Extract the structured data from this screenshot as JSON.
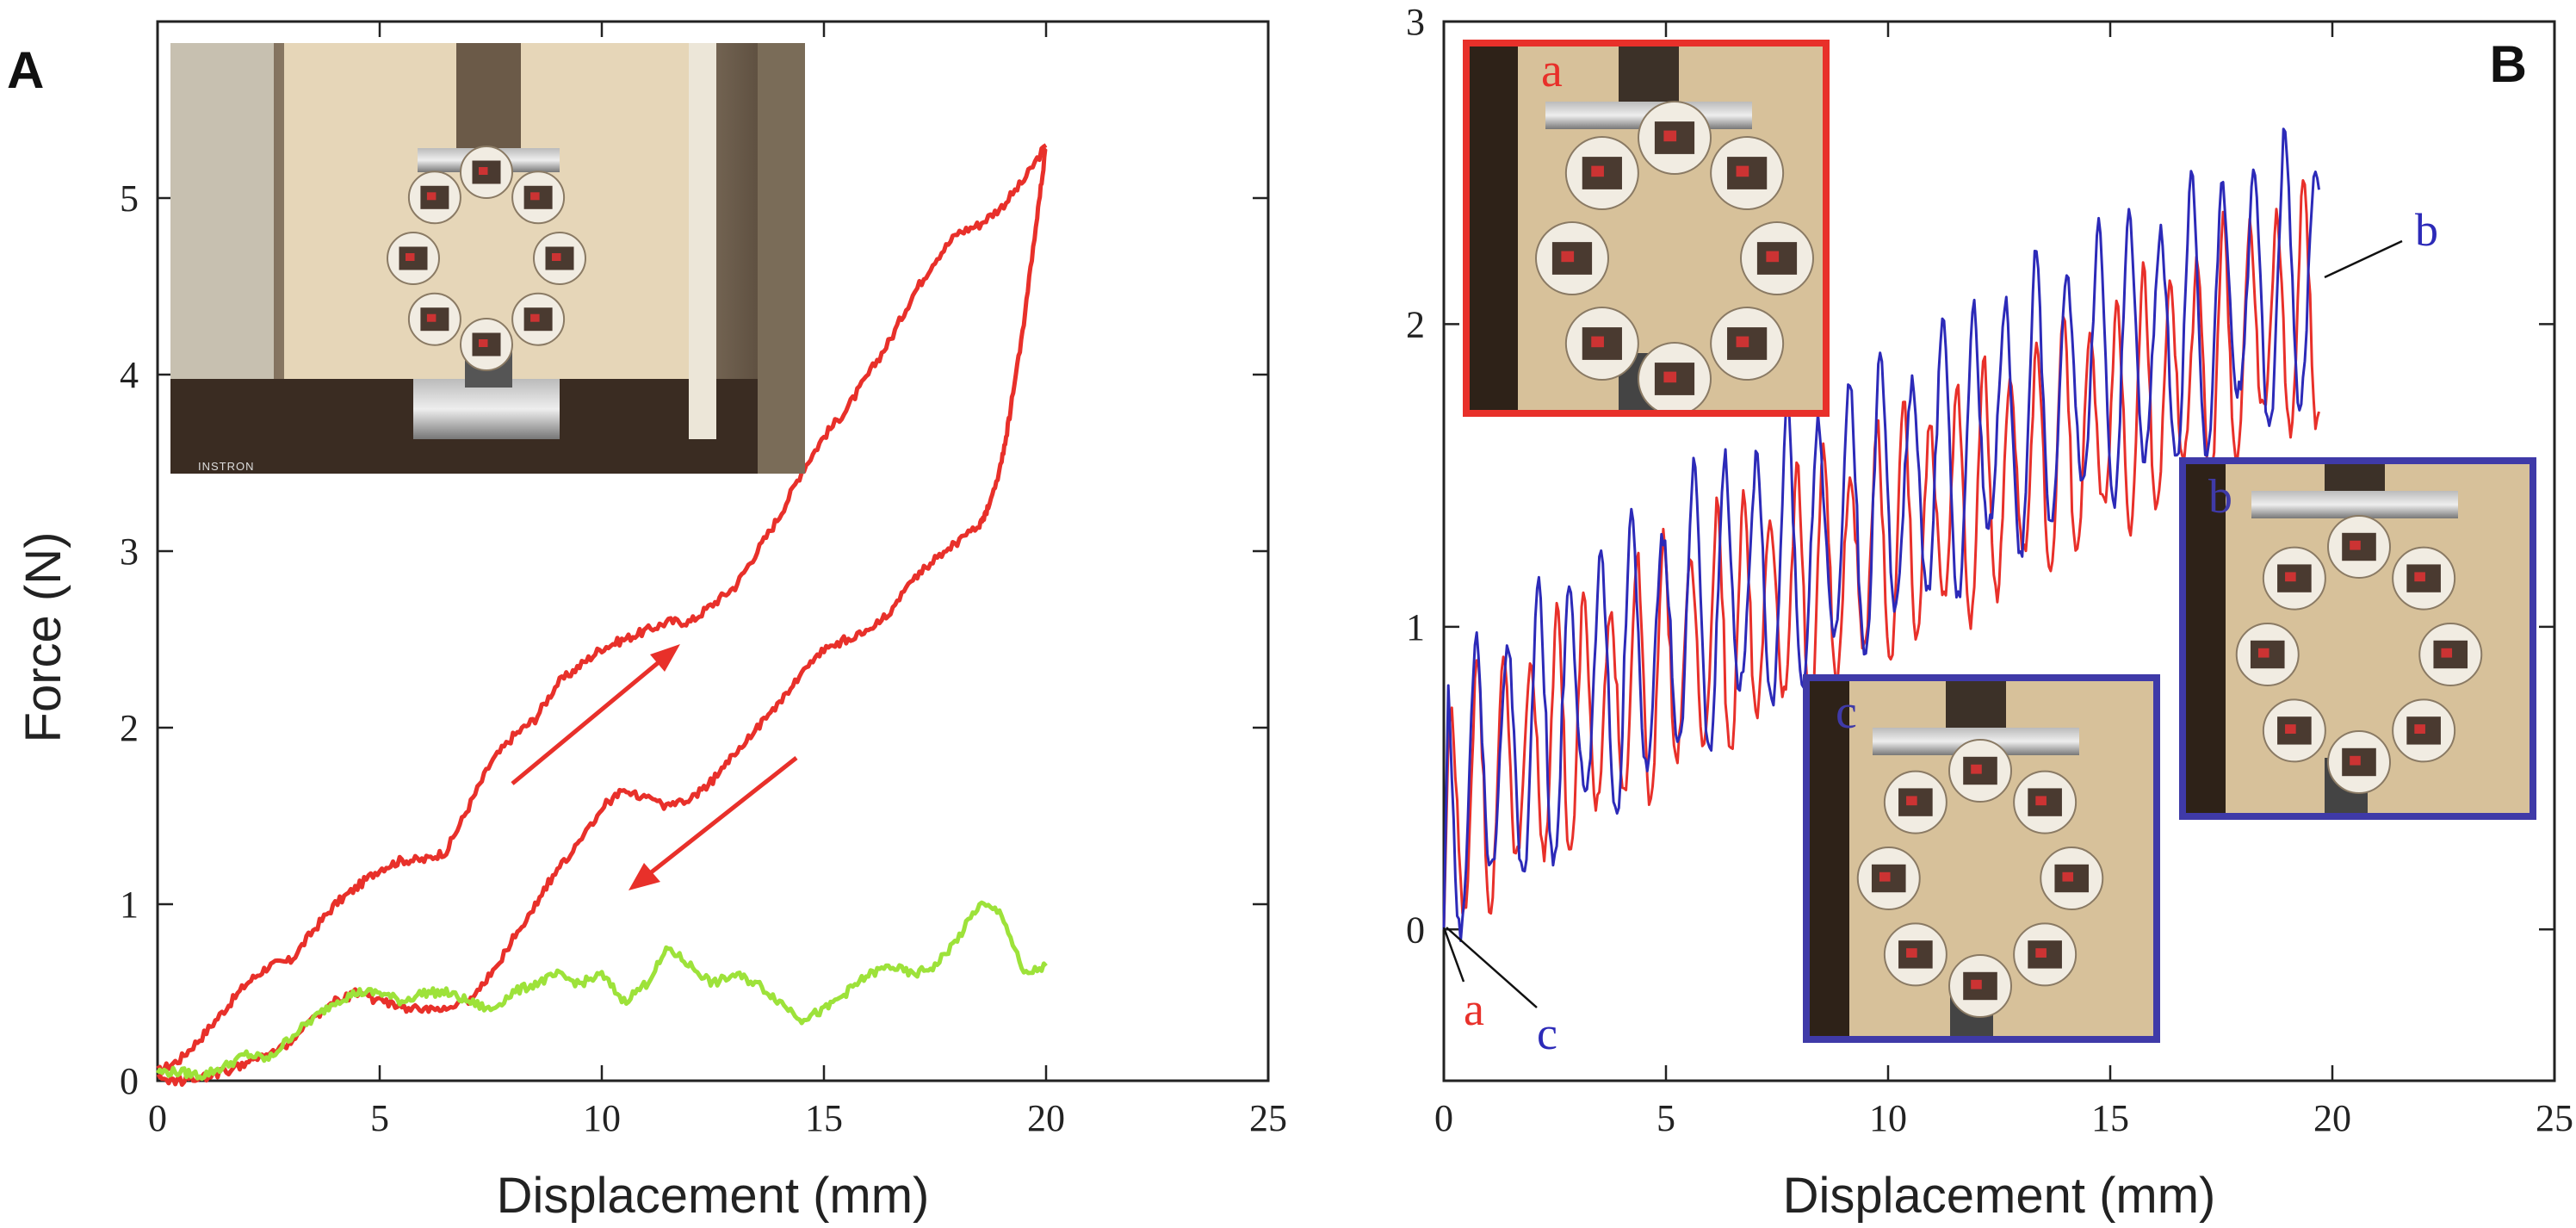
{
  "chart_data": [
    {
      "panel": "A",
      "type": "line",
      "xlabel": "Displacement (mm)",
      "ylabel": "Force  (N)",
      "xlim": [
        0,
        25
      ],
      "ylim": [
        0,
        6
      ],
      "xticks": [
        "0",
        "5",
        "10",
        "15",
        "20",
        "25"
      ],
      "yticks": [
        "0",
        "1",
        "2",
        "3",
        "4",
        "5"
      ],
      "inset_photo_label": "INSTRON",
      "series": [
        {
          "color": "#e8302a",
          "x": [
            0,
            0.5,
            1,
            1.5,
            2,
            2.5,
            3,
            3.5,
            4,
            4.5,
            5,
            5.5,
            6,
            6.5,
            7,
            7.5,
            8,
            8.5,
            9,
            9.5,
            10,
            10.5,
            11,
            11.5,
            12,
            12.5,
            13,
            13.5,
            14,
            14.5,
            15,
            15.5,
            16,
            16.5,
            17,
            17.5,
            18,
            18.5,
            19,
            19.5,
            20
          ],
          "y": [
            0.05,
            0.12,
            0.25,
            0.4,
            0.55,
            0.65,
            0.68,
            0.85,
            1.0,
            1.1,
            1.2,
            1.25,
            1.25,
            1.3,
            1.55,
            1.8,
            1.95,
            2.05,
            2.25,
            2.35,
            2.45,
            2.5,
            2.55,
            2.6,
            2.6,
            2.7,
            2.8,
            3.0,
            3.2,
            3.45,
            3.65,
            3.8,
            4.0,
            4.2,
            4.45,
            4.65,
            4.8,
            4.85,
            4.95,
            5.1,
            5.3
          ]
        },
        {
          "color": "#e8302a",
          "x": [
            20,
            19.8,
            19.5,
            19.2,
            19,
            18.7,
            18.5,
            18,
            17.5,
            17,
            16.5,
            16,
            15.5,
            15,
            14.5,
            14,
            13.5,
            13,
            12.5,
            12,
            11.5,
            11,
            10.5,
            10,
            9.5,
            9,
            8.5,
            8,
            7.5,
            7,
            6.5,
            6,
            5.5,
            5,
            4.5,
            4,
            3.5,
            3,
            2.5,
            2,
            1.5,
            1,
            0.5,
            0
          ],
          "y": [
            5.3,
            4.9,
            4.3,
            3.8,
            3.5,
            3.25,
            3.15,
            3.05,
            2.95,
            2.85,
            2.65,
            2.55,
            2.5,
            2.45,
            2.3,
            2.15,
            2.0,
            1.85,
            1.7,
            1.6,
            1.55,
            1.6,
            1.65,
            1.55,
            1.35,
            1.2,
            1.0,
            0.8,
            0.6,
            0.45,
            0.42,
            0.4,
            0.42,
            0.45,
            0.5,
            0.45,
            0.35,
            0.22,
            0.15,
            0.1,
            0.05,
            0.02,
            0.0,
            0.02
          ]
        },
        {
          "color": "#9de23a",
          "x": [
            0,
            0.5,
            1,
            1.5,
            2,
            2.5,
            3,
            3.5,
            4,
            4.5,
            5,
            5.5,
            6,
            6.5,
            7,
            7.5,
            8,
            8.5,
            9,
            9.5,
            10,
            10.5,
            11,
            11.5,
            12,
            12.5,
            13,
            13.5,
            14,
            14.5,
            15,
            15.5,
            16,
            16.5,
            17,
            17.5,
            18,
            18.5,
            19,
            19.5,
            20
          ],
          "y": [
            0.05,
            0.05,
            0.03,
            0.08,
            0.15,
            0.12,
            0.25,
            0.35,
            0.45,
            0.5,
            0.5,
            0.45,
            0.5,
            0.5,
            0.45,
            0.4,
            0.5,
            0.55,
            0.6,
            0.55,
            0.6,
            0.45,
            0.55,
            0.75,
            0.65,
            0.55,
            0.6,
            0.55,
            0.45,
            0.35,
            0.4,
            0.5,
            0.6,
            0.65,
            0.6,
            0.65,
            0.8,
            1.0,
            0.95,
            0.6,
            0.65
          ]
        }
      ]
    },
    {
      "panel": "B",
      "type": "line",
      "xlabel": "Displacement (mm)",
      "ylabel": "",
      "xlim": [
        0,
        25
      ],
      "ylim": [
        -0.5,
        3
      ],
      "xticks": [
        "0",
        "5",
        "10",
        "15",
        "20",
        "25"
      ],
      "yticks": [
        "0",
        "1",
        "2",
        "3"
      ],
      "series": [
        {
          "name": "a",
          "color": "#e8302a",
          "trend": {
            "x": [
              0,
              2,
              5,
              10,
              15,
              19.7
            ],
            "y": [
              0.4,
              0.6,
              0.9,
              1.3,
              1.7,
              2.1
            ]
          },
          "amplitude": 0.35,
          "period": 0.6,
          "end_x": 19.7
        },
        {
          "name": "b",
          "color": "#2c2ab8",
          "trend": {
            "x": [
              0,
              2,
              5,
              10,
              15,
              19.7
            ],
            "y": [
              0.45,
              0.65,
              1.0,
              1.45,
              1.9,
              2.2
            ]
          },
          "amplitude": 0.4,
          "period": 0.7,
          "end_x": 19.7
        }
      ],
      "annotations": [
        {
          "text": "a",
          "color": "#e8302a"
        },
        {
          "text": "c",
          "color": "#2c2ab8"
        },
        {
          "text": "b",
          "color": "#2c2ab8"
        }
      ],
      "insets": [
        {
          "label": "a",
          "color": "#e8302a"
        },
        {
          "label": "b",
          "color": "#3f3aa8"
        },
        {
          "label": "c",
          "color": "#3f3aa8"
        }
      ]
    }
  ],
  "panels": {
    "left_letter": "A",
    "right_letter": "B"
  }
}
